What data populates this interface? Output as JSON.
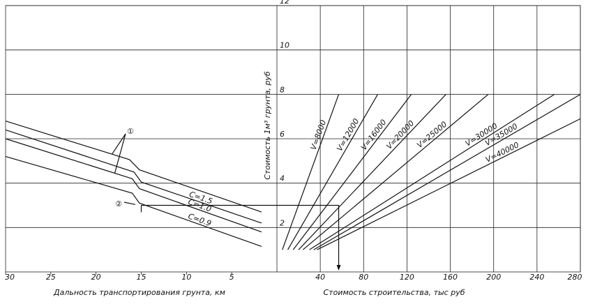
{
  "chart_data": [
    {
      "type": "line",
      "xlabel": "Дальность транспортирования грунта, км",
      "xlim": [
        30,
        0
      ],
      "xticks": [
        30,
        25,
        20,
        15,
        10,
        5
      ],
      "ylim": [
        0,
        12
      ],
      "annotations": [
        "①",
        "②"
      ],
      "series": [
        {
          "color": "#111",
          "x": [
            30,
            16.3,
            15.2,
            1.7
          ],
          "values": [
            6.8,
            5.06,
            4.6,
            2.7
          ]
        },
        {
          "name": "C=1.5",
          "color": "#111",
          "x": [
            30,
            15.8,
            15.0,
            1.7
          ],
          "values": [
            6.4,
            4.5,
            4.05,
            2.2
          ]
        },
        {
          "name": "C=1.0",
          "color": "#111",
          "x": [
            30,
            16.0,
            15.2,
            1.7
          ],
          "values": [
            6.0,
            4.2,
            3.75,
            1.8
          ]
        },
        {
          "name": "C=0.9",
          "color": "#111",
          "x": [
            30,
            16.0,
            15.2,
            1.7
          ],
          "values": [
            5.2,
            3.55,
            3.1,
            1.15
          ]
        }
      ]
    },
    {
      "type": "line",
      "xlabel": "Стоимость строительства, тыс руб",
      "ylabel": "Стоимость 1м³ грунта, руб",
      "xlim": [
        0,
        280
      ],
      "xticks": [
        40,
        80,
        120,
        160,
        200,
        240,
        280
      ],
      "ylim": [
        0,
        12
      ],
      "yticks": [
        2,
        4,
        6,
        8,
        10,
        12
      ],
      "guide": {
        "x_left": 15,
        "y": 3,
        "x_right": 57
      },
      "series": [
        {
          "name": "V=8000",
          "color": "#111",
          "x": [
            5,
            57
          ],
          "values": [
            1,
            8
          ]
        },
        {
          "name": "V=12000",
          "color": "#111",
          "x": [
            10,
            93
          ],
          "values": [
            1,
            8
          ]
        },
        {
          "name": "V=16000",
          "color": "#111",
          "x": [
            15,
            124
          ],
          "values": [
            1,
            8
          ]
        },
        {
          "name": "V=20000",
          "color": "#111",
          "x": [
            20,
            156
          ],
          "values": [
            1,
            8
          ]
        },
        {
          "name": "V=25000",
          "color": "#111",
          "x": [
            24,
            195
          ],
          "values": [
            1,
            8
          ]
        },
        {
          "name": "V=30000",
          "color": "#111",
          "x": [
            30,
            256
          ],
          "values": [
            1,
            8
          ]
        },
        {
          "name": "V=35000",
          "color": "#111",
          "x": [
            34,
            280
          ],
          "values": [
            1,
            8
          ]
        },
        {
          "name": "V=40000",
          "color": "#111",
          "x": [
            37,
            280
          ],
          "values": [
            1,
            6.9
          ]
        }
      ]
    }
  ]
}
